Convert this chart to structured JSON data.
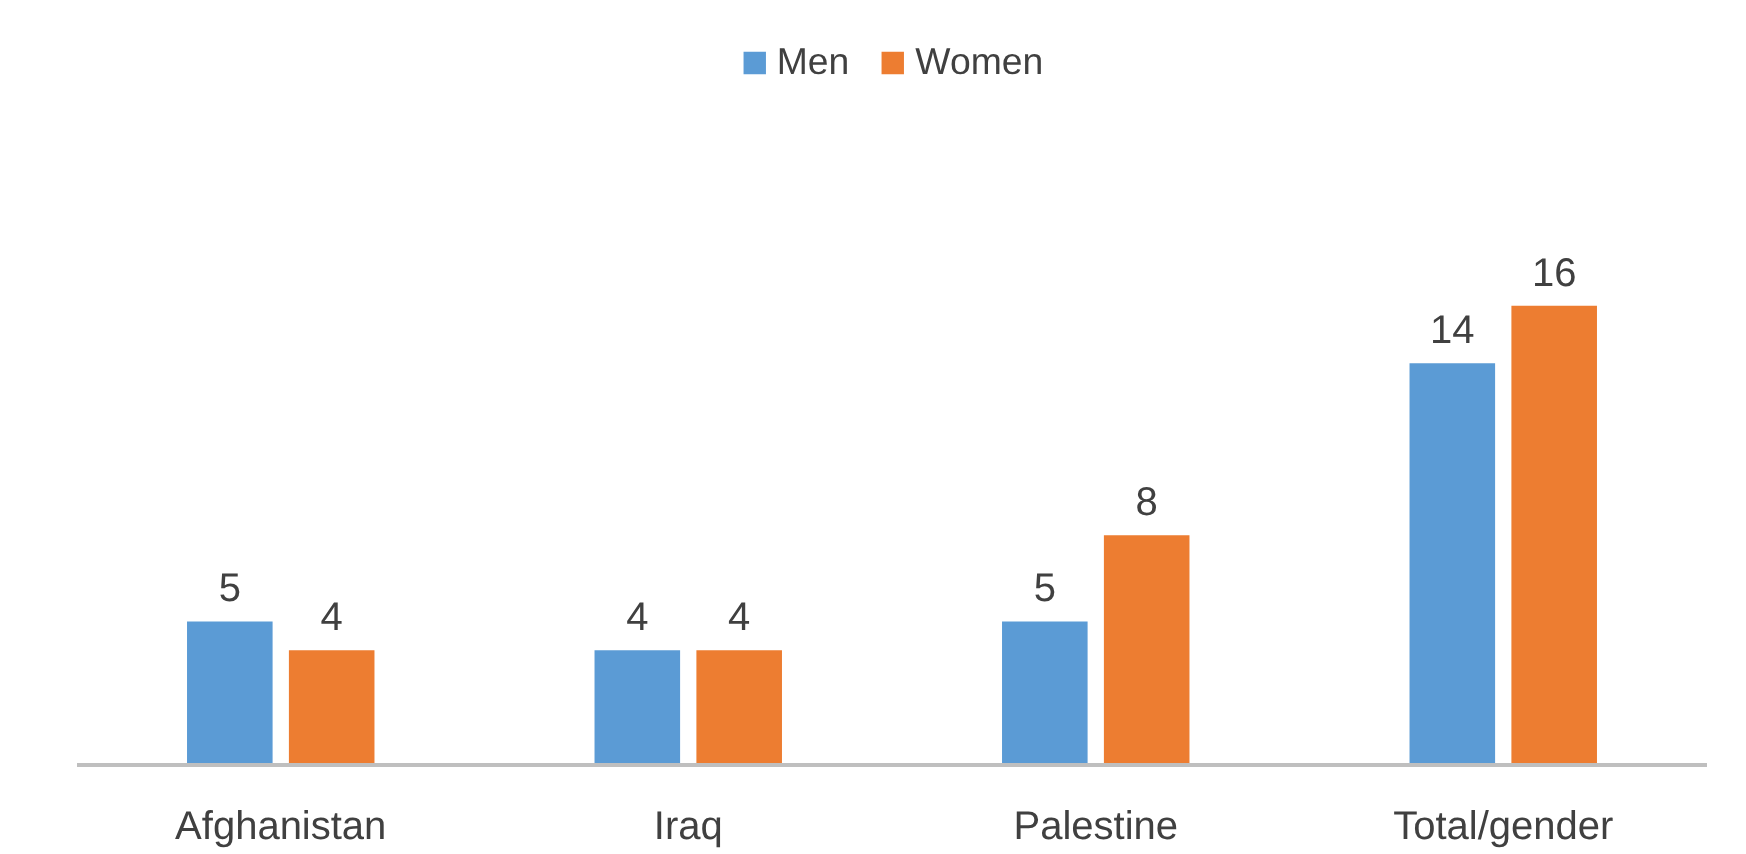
{
  "chart_data": {
    "type": "bar",
    "categories": [
      "Afghanistan",
      "Iraq",
      "Palestine",
      "Total/gender"
    ],
    "series": [
      {
        "name": "Men",
        "color": "#5b9bd5",
        "values": [
          5,
          4,
          5,
          14
        ]
      },
      {
        "name": "Women",
        "color": "#ed7d31",
        "values": [
          4,
          4,
          8,
          16
        ]
      }
    ],
    "data_labels": true,
    "legend": "top",
    "grid": false
  }
}
